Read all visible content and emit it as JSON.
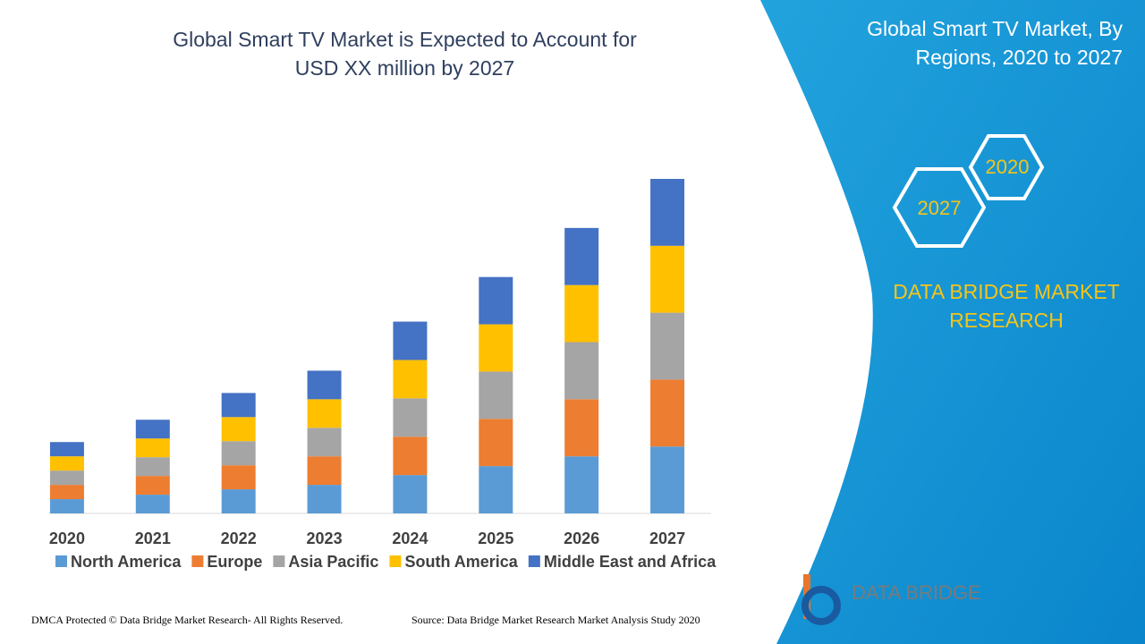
{
  "chart_data": {
    "type": "stacked-bar",
    "title": "Global Smart TV Market is Expected to Account for USD XX million by 2027",
    "categories": [
      "2020",
      "2021",
      "2022",
      "2023",
      "2024",
      "2025",
      "2026",
      "2027"
    ],
    "series": [
      {
        "name": "North America",
        "color": "#5b9bd5",
        "values": [
          16,
          21,
          27,
          32,
          43,
          53,
          64,
          75
        ]
      },
      {
        "name": "Europe",
        "color": "#ed7d31",
        "values": [
          16,
          21,
          27,
          32,
          43,
          53,
          64,
          75
        ]
      },
      {
        "name": "Asia Pacific",
        "color": "#a5a5a5",
        "values": [
          16,
          21,
          27,
          32,
          43,
          53,
          64,
          75
        ]
      },
      {
        "name": "South America",
        "color": "#ffc000",
        "values": [
          16,
          21,
          27,
          32,
          43,
          53,
          64,
          75
        ]
      },
      {
        "name": "Middle East and Africa",
        "color": "#4472c4",
        "values": [
          16,
          21,
          27,
          32,
          43,
          53,
          64,
          75
        ]
      }
    ]
  },
  "panel": {
    "title": "Global Smart TV Market, By Regions, 2020 to 2027",
    "hex_1": "2020",
    "hex_2": "2027",
    "brand": "DATA BRIDGE MARKET RESEARCH"
  },
  "logo": {
    "text": "DATA BRIDGE"
  },
  "footer": {
    "left": "DMCA Protected © Data Bridge Market Research- All Rights Reserved.",
    "right": "Source: Data Bridge Market Research Market Analysis Study 2020"
  }
}
